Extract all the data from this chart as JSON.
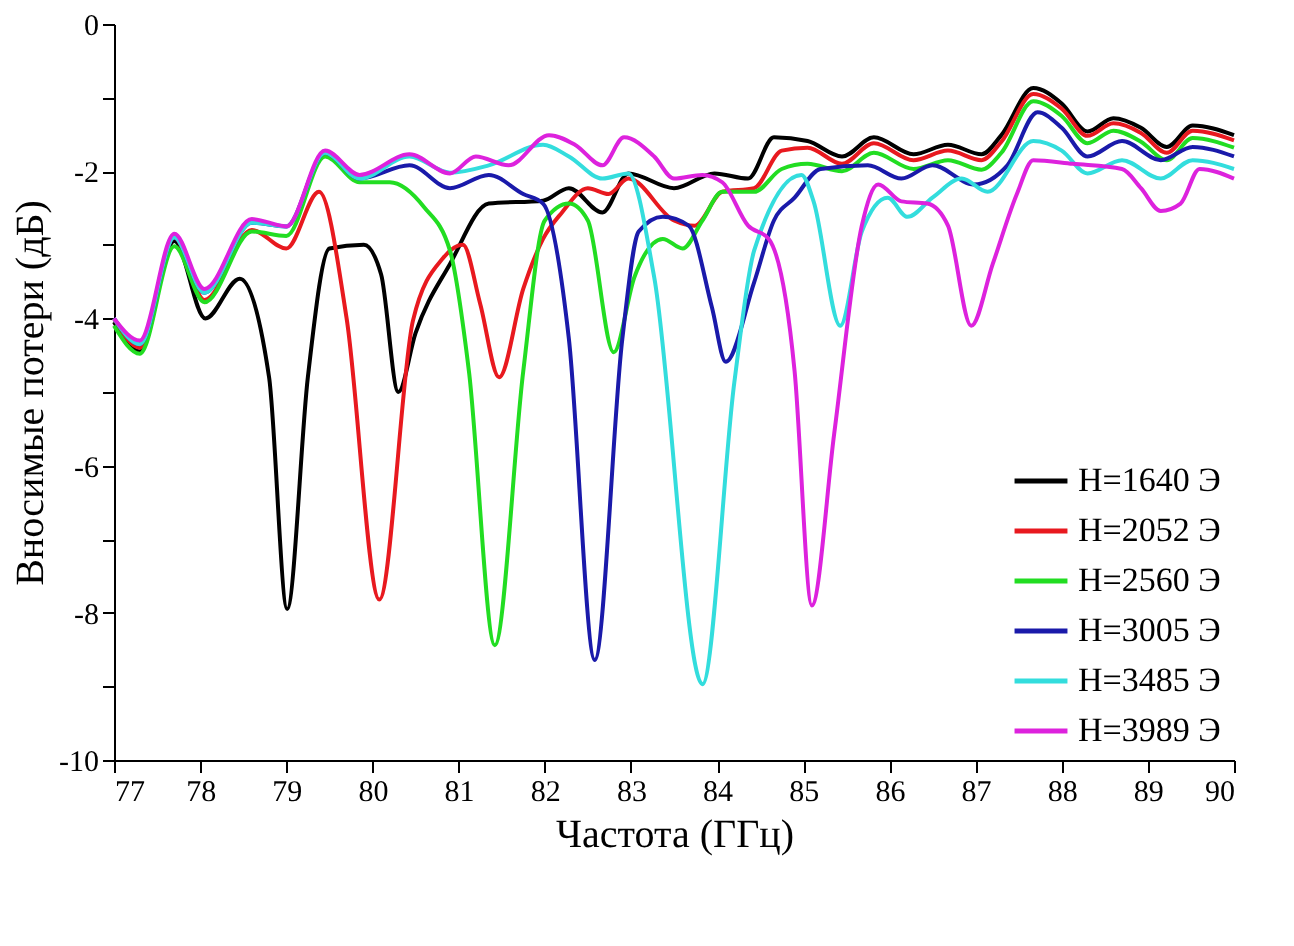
{
  "chart_data": {
    "type": "line",
    "xlabel": "Частота (ГГц)",
    "ylabel": "Вносимые потери (дБ)",
    "xlim": [
      77,
      90
    ],
    "ylim": [
      -10,
      0
    ],
    "xticks": [
      77,
      78,
      79,
      80,
      81,
      82,
      83,
      84,
      85,
      86,
      87,
      88,
      89,
      90
    ],
    "yticks": [
      -10,
      {
        "value": -9,
        "label": null
      },
      -8,
      {
        "value": -7,
        "label": null
      },
      -6,
      {
        "value": -5,
        "label": null
      },
      -4,
      {
        "value": -3,
        "label": null
      },
      -2,
      {
        "value": -1,
        "label": null
      },
      0
    ],
    "legend": "bottom right",
    "grid": false,
    "series": [
      {
        "name": "H=1640 Э",
        "color": "#000000",
        "x": [
          77,
          77.3,
          77.7,
          78.06,
          78.46,
          78.8,
          79.01,
          79.25,
          79.5,
          79.9,
          80.1,
          80.3,
          80.5,
          80.9,
          81.35,
          81.98,
          82.28,
          82.67,
          82.97,
          83.5,
          83.97,
          84.36,
          84.66,
          85.05,
          85.45,
          85.82,
          86.28,
          86.68,
          87.07,
          87.3,
          87.67,
          88.0,
          88.3,
          88.6,
          88.92,
          89.22,
          89.52,
          90
        ],
        "values": [
          -4.05,
          -4.45,
          -2.95,
          -4.0,
          -3.46,
          -4.8,
          -7.95,
          -4.8,
          -3.05,
          -3.0,
          -3.4,
          -5.0,
          -4.2,
          -3.26,
          -2.44,
          -2.4,
          -2.23,
          -2.56,
          -2.03,
          -2.23,
          -2.03,
          -2.1,
          -1.54,
          -1.59,
          -1.8,
          -1.54,
          -1.77,
          -1.64,
          -1.77,
          -1.51,
          -0.87,
          -1.08,
          -1.46,
          -1.28,
          -1.41,
          -1.67,
          -1.38,
          -1.51
        ]
      },
      {
        "name": "H=2052 Э",
        "color": "#e8191f",
        "x": [
          77,
          77.3,
          77.7,
          78.05,
          78.6,
          79.0,
          79.38,
          79.7,
          80.08,
          80.47,
          80.82,
          81.05,
          81.25,
          81.47,
          81.75,
          81.98,
          82.2,
          82.5,
          82.74,
          82.97,
          83.5,
          83.74,
          84.06,
          84.43,
          84.75,
          85.05,
          85.45,
          85.82,
          86.28,
          86.68,
          87.07,
          87.3,
          87.67,
          88.0,
          88.3,
          88.6,
          88.92,
          89.22,
          89.52,
          90
        ],
        "values": [
          -4.0,
          -4.4,
          -2.9,
          -3.75,
          -2.8,
          -3.05,
          -2.28,
          -4.0,
          -7.82,
          -4.03,
          -3.18,
          -3.0,
          -3.8,
          -4.8,
          -3.6,
          -2.92,
          -2.56,
          -2.23,
          -2.31,
          -2.1,
          -2.67,
          -2.74,
          -2.28,
          -2.23,
          -1.72,
          -1.68,
          -1.9,
          -1.62,
          -1.85,
          -1.72,
          -1.85,
          -1.6,
          -0.95,
          -1.15,
          -1.52,
          -1.35,
          -1.48,
          -1.75,
          -1.45,
          -1.58
        ]
      },
      {
        "name": "H=2560 Э",
        "color": "#22dd22",
        "x": [
          77,
          77.3,
          77.7,
          78.05,
          78.6,
          79.0,
          79.45,
          79.85,
          80.2,
          80.6,
          80.9,
          81.12,
          81.42,
          81.75,
          82.0,
          82.28,
          82.5,
          82.8,
          83.04,
          83.37,
          83.6,
          83.83,
          84.06,
          84.43,
          84.75,
          85.05,
          85.45,
          85.82,
          86.28,
          86.68,
          87.07,
          87.3,
          87.67,
          88.0,
          88.3,
          88.6,
          88.92,
          89.22,
          89.52,
          90
        ],
        "values": [
          -4.1,
          -4.48,
          -3.02,
          -3.78,
          -2.82,
          -2.88,
          -1.8,
          -2.15,
          -2.15,
          -2.49,
          -3.08,
          -4.72,
          -8.44,
          -4.72,
          -2.67,
          -2.44,
          -2.67,
          -4.46,
          -3.44,
          -2.92,
          -3.05,
          -2.67,
          -2.28,
          -2.28,
          -1.97,
          -1.9,
          -2.0,
          -1.75,
          -1.97,
          -1.85,
          -1.98,
          -1.75,
          -1.05,
          -1.25,
          -1.62,
          -1.45,
          -1.6,
          -1.85,
          -1.55,
          -1.68
        ]
      },
      {
        "name": "H=3005 Э",
        "color": "#1a1aaa",
        "x": [
          77,
          77.3,
          77.7,
          78.05,
          78.6,
          79.0,
          79.45,
          79.85,
          80.43,
          80.9,
          81.35,
          81.75,
          81.98,
          82.28,
          82.58,
          82.9,
          83.09,
          83.37,
          83.67,
          83.94,
          84.1,
          84.43,
          84.66,
          84.9,
          85.2,
          85.75,
          86.14,
          86.5,
          86.98,
          87.37,
          87.72,
          88.0,
          88.3,
          88.7,
          89.15,
          89.52,
          90
        ],
        "values": [
          -4.0,
          -4.35,
          -2.9,
          -3.65,
          -2.7,
          -2.75,
          -1.75,
          -2.1,
          -1.92,
          -2.23,
          -2.05,
          -2.31,
          -2.44,
          -4.28,
          -8.64,
          -4.28,
          -2.82,
          -2.62,
          -2.74,
          -3.85,
          -4.59,
          -3.51,
          -2.67,
          -2.36,
          -1.97,
          -1.92,
          -2.1,
          -1.92,
          -2.18,
          -1.92,
          -1.2,
          -1.41,
          -1.8,
          -1.59,
          -1.85,
          -1.67,
          -1.8
        ]
      },
      {
        "name": "H=3485 Э",
        "color": "#33dddd",
        "x": [
          77,
          77.3,
          77.7,
          78.05,
          78.6,
          79.0,
          79.45,
          79.85,
          80.43,
          80.9,
          81.35,
          81.98,
          82.28,
          82.67,
          82.97,
          83.27,
          83.83,
          84.2,
          84.43,
          84.98,
          85.12,
          85.43,
          85.68,
          85.98,
          86.21,
          86.5,
          86.84,
          87.14,
          87.67,
          88.0,
          88.3,
          88.7,
          89.15,
          89.52,
          90
        ],
        "values": [
          -4.0,
          -4.35,
          -2.9,
          -3.65,
          -2.7,
          -2.75,
          -1.75,
          -2.1,
          -1.8,
          -2.02,
          -1.92,
          -1.64,
          -1.8,
          -2.1,
          -2.03,
          -3.44,
          -8.97,
          -4.87,
          -3.08,
          -2.05,
          -2.41,
          -4.1,
          -2.82,
          -2.36,
          -2.62,
          -2.36,
          -2.1,
          -2.28,
          -1.59,
          -1.72,
          -2.03,
          -1.85,
          -2.1,
          -1.85,
          -1.97
        ]
      },
      {
        "name": "H=3989 Э",
        "color": "#dd22dd",
        "x": [
          77,
          77.3,
          77.7,
          78.05,
          78.6,
          79.0,
          79.45,
          79.85,
          80.43,
          80.9,
          81.2,
          81.58,
          82.05,
          82.35,
          82.67,
          82.92,
          83.27,
          83.5,
          83.83,
          84.06,
          84.36,
          84.6,
          84.9,
          85.1,
          85.36,
          85.68,
          85.87,
          86.14,
          86.44,
          86.68,
          86.95,
          87.2,
          87.48,
          87.67,
          88.13,
          88.7,
          88.92,
          89.15,
          89.38,
          89.6,
          90
        ],
        "values": [
          -4.0,
          -4.3,
          -2.85,
          -3.6,
          -2.65,
          -2.75,
          -1.72,
          -2.05,
          -1.77,
          -2.03,
          -1.8,
          -1.92,
          -1.51,
          -1.64,
          -1.92,
          -1.54,
          -1.8,
          -2.1,
          -2.05,
          -2.15,
          -2.74,
          -2.92,
          -4.72,
          -7.9,
          -5.56,
          -2.74,
          -2.18,
          -2.41,
          -2.44,
          -2.74,
          -4.1,
          -3.26,
          -2.31,
          -1.85,
          -1.9,
          -1.97,
          -2.23,
          -2.54,
          -2.44,
          -1.97,
          -2.1
        ]
      }
    ]
  }
}
